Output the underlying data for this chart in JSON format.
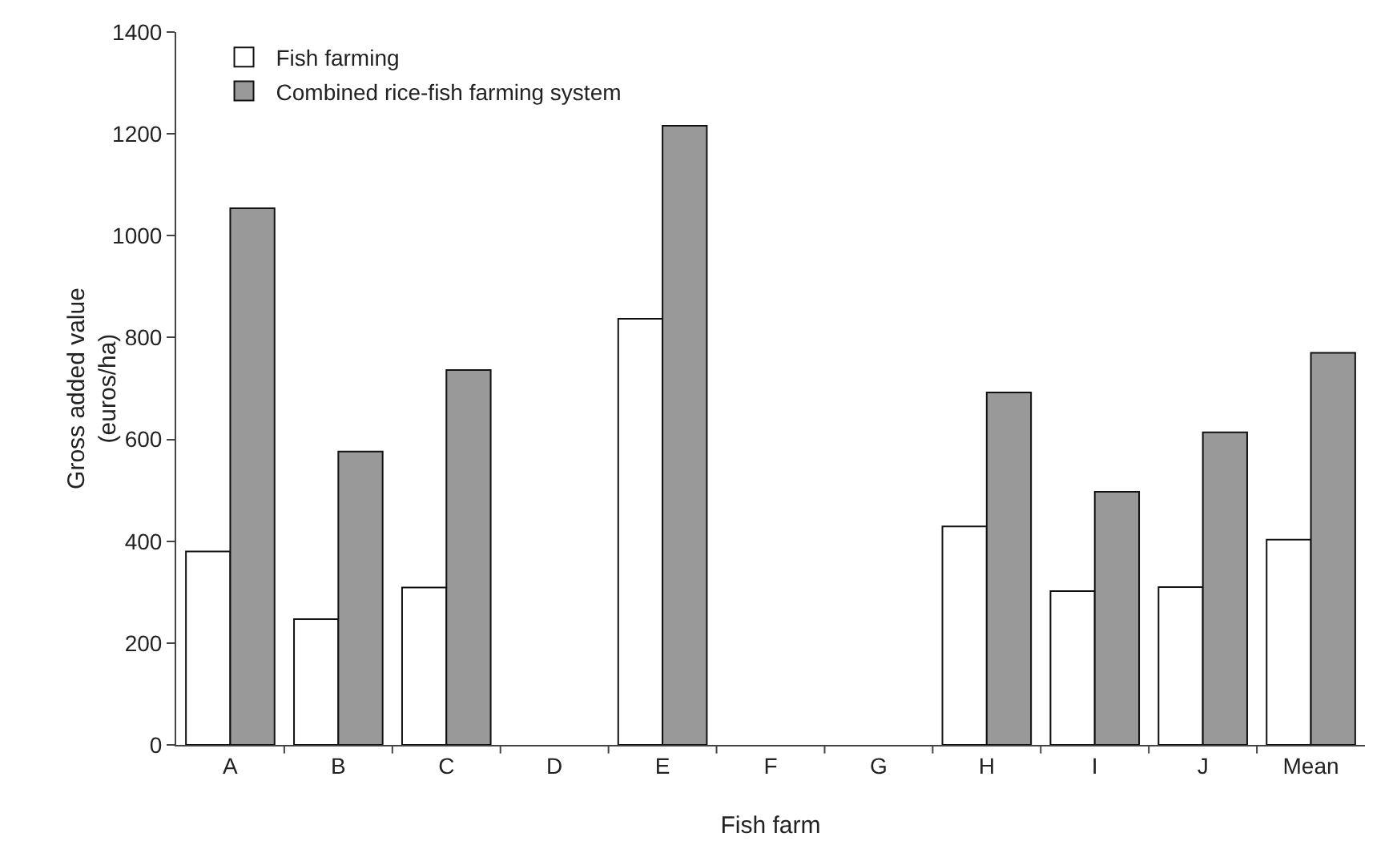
{
  "chart_data": {
    "type": "bar",
    "xlabel": "Fish farm",
    "ylabel": "Gross added value\n(euros/ha)",
    "categories": [
      "A",
      "B",
      "C",
      "D",
      "E",
      "F",
      "G",
      "H",
      "I",
      "J",
      "Mean"
    ],
    "series": [
      {
        "name": "Fish farming",
        "color": "#ffffff",
        "values": [
          380,
          247,
          309,
          null,
          837,
          null,
          null,
          429,
          302,
          310,
          403
        ]
      },
      {
        "name": "Combined rice-fish farming system",
        "color": "#999999",
        "values": [
          1054,
          576,
          736,
          null,
          1216,
          null,
          null,
          692,
          497,
          614,
          770
        ]
      }
    ],
    "ylim": [
      0,
      1400
    ],
    "yticks": [
      0,
      200,
      400,
      600,
      800,
      1000,
      1200,
      1400
    ],
    "grid": false,
    "legend": "top left"
  }
}
